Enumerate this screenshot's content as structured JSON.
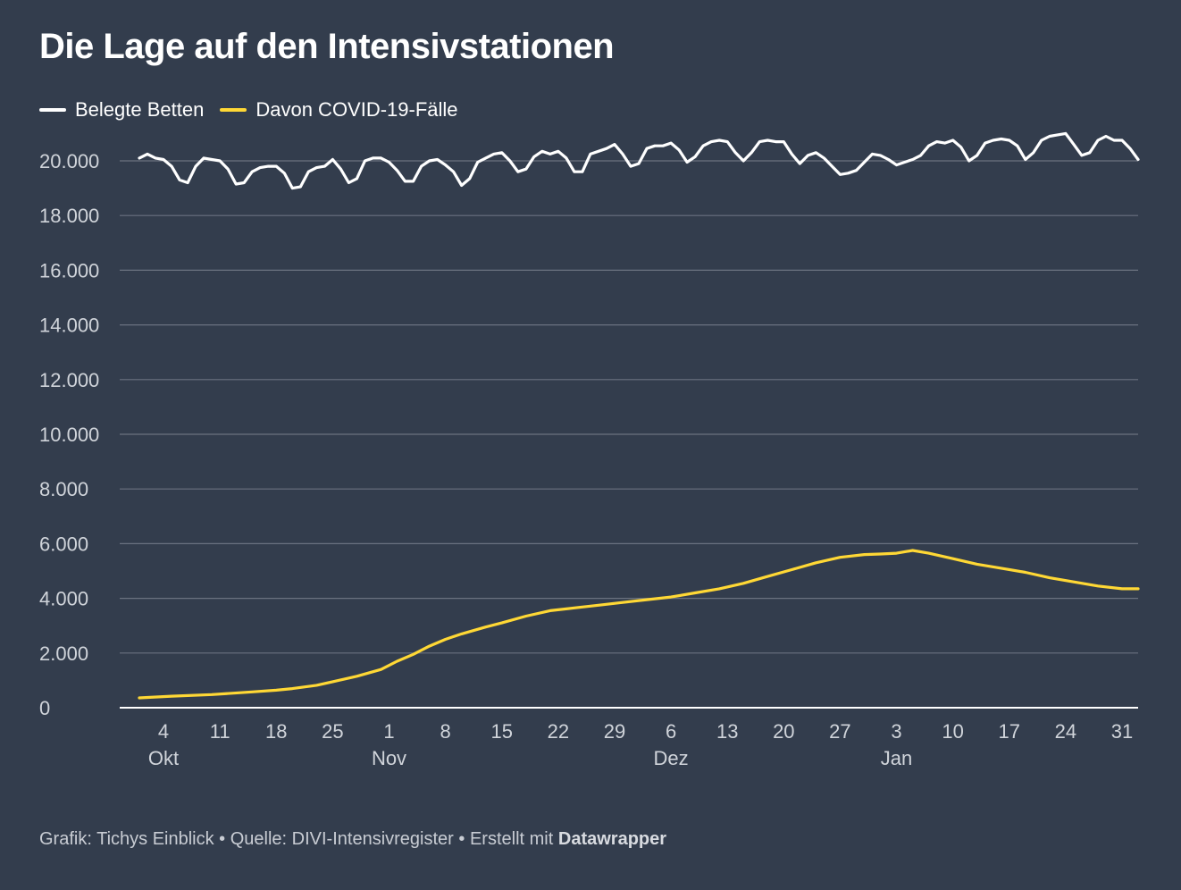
{
  "title": "Die Lage auf den Intensivstationen",
  "footer": {
    "credit": "Grafik: Tichys Einblick",
    "sep1": " • ",
    "source": "Quelle: DIVI-Intensivregister",
    "sep2": " • ",
    "made_with": "Erstellt mit ",
    "tool": "Datawrapper"
  },
  "colors": {
    "background": "#333d4d",
    "grid": "#6b7280",
    "text": "#d0d4da",
    "belegt": "#ffffff",
    "covid": "#ffd835"
  },
  "chart_data": {
    "type": "line",
    "title": "Die Lage auf den Intensivstationen",
    "xlabel": "",
    "ylabel": "",
    "x_start": "2020-10-01",
    "x_end": "2021-01-31",
    "ylim": [
      0,
      20000
    ],
    "yticks": [
      {
        "value": 0,
        "label": "0"
      },
      {
        "value": 2000,
        "label": "2.000"
      },
      {
        "value": 4000,
        "label": "4.000"
      },
      {
        "value": 6000,
        "label": "6.000"
      },
      {
        "value": 8000,
        "label": "8.000"
      },
      {
        "value": 10000,
        "label": "10.000"
      },
      {
        "value": 12000,
        "label": "12.000"
      },
      {
        "value": 14000,
        "label": "14.000"
      },
      {
        "value": 16000,
        "label": "16.000"
      },
      {
        "value": 18000,
        "label": "18.000"
      },
      {
        "value": 20000,
        "label": "20.000"
      }
    ],
    "xticks": [
      {
        "date": "2020-10-04",
        "label": "4",
        "month": "Okt"
      },
      {
        "date": "2020-10-11",
        "label": "11",
        "month": ""
      },
      {
        "date": "2020-10-18",
        "label": "18",
        "month": ""
      },
      {
        "date": "2020-10-25",
        "label": "25",
        "month": ""
      },
      {
        "date": "2020-11-01",
        "label": "1",
        "month": "Nov"
      },
      {
        "date": "2020-11-08",
        "label": "8",
        "month": ""
      },
      {
        "date": "2020-11-15",
        "label": "15",
        "month": ""
      },
      {
        "date": "2020-11-22",
        "label": "22",
        "month": ""
      },
      {
        "date": "2020-11-29",
        "label": "29",
        "month": ""
      },
      {
        "date": "2020-12-06",
        "label": "6",
        "month": "Dez"
      },
      {
        "date": "2020-12-13",
        "label": "13",
        "month": ""
      },
      {
        "date": "2020-12-20",
        "label": "20",
        "month": ""
      },
      {
        "date": "2020-12-27",
        "label": "27",
        "month": ""
      },
      {
        "date": "2021-01-03",
        "label": "3",
        "month": "Jan"
      },
      {
        "date": "2021-01-10",
        "label": "10",
        "month": ""
      },
      {
        "date": "2021-01-17",
        "label": "17",
        "month": ""
      },
      {
        "date": "2021-01-24",
        "label": "24",
        "month": ""
      },
      {
        "date": "2021-01-31",
        "label": "31",
        "month": ""
      }
    ],
    "grid": true,
    "legend_position": "top-left",
    "series": [
      {
        "name": "Belegte Betten",
        "color": "#ffffff",
        "points": [
          [
            "2020-10-01",
            20100
          ],
          [
            "2020-10-02",
            20250
          ],
          [
            "2020-10-03",
            20100
          ],
          [
            "2020-10-04",
            20050
          ],
          [
            "2020-10-05",
            19800
          ],
          [
            "2020-10-06",
            19300
          ],
          [
            "2020-10-07",
            19200
          ],
          [
            "2020-10-08",
            19800
          ],
          [
            "2020-10-09",
            20100
          ],
          [
            "2020-10-10",
            20050
          ],
          [
            "2020-10-11",
            20000
          ],
          [
            "2020-10-12",
            19700
          ],
          [
            "2020-10-13",
            19150
          ],
          [
            "2020-10-14",
            19200
          ],
          [
            "2020-10-15",
            19600
          ],
          [
            "2020-10-16",
            19750
          ],
          [
            "2020-10-17",
            19800
          ],
          [
            "2020-10-18",
            19800
          ],
          [
            "2020-10-19",
            19550
          ],
          [
            "2020-10-20",
            19000
          ],
          [
            "2020-10-21",
            19050
          ],
          [
            "2020-10-22",
            19600
          ],
          [
            "2020-10-23",
            19750
          ],
          [
            "2020-10-24",
            19800
          ],
          [
            "2020-10-25",
            20050
          ],
          [
            "2020-10-26",
            19700
          ],
          [
            "2020-10-27",
            19200
          ],
          [
            "2020-10-28",
            19350
          ],
          [
            "2020-10-29",
            20000
          ],
          [
            "2020-10-30",
            20100
          ],
          [
            "2020-10-31",
            20100
          ],
          [
            "2020-11-01",
            19950
          ],
          [
            "2020-11-02",
            19650
          ],
          [
            "2020-11-03",
            19250
          ],
          [
            "2020-11-04",
            19250
          ],
          [
            "2020-11-05",
            19800
          ],
          [
            "2020-11-06",
            20000
          ],
          [
            "2020-11-07",
            20050
          ],
          [
            "2020-11-08",
            19850
          ],
          [
            "2020-11-09",
            19600
          ],
          [
            "2020-11-10",
            19100
          ],
          [
            "2020-11-11",
            19350
          ],
          [
            "2020-11-12",
            19950
          ],
          [
            "2020-11-13",
            20100
          ],
          [
            "2020-11-14",
            20250
          ],
          [
            "2020-11-15",
            20300
          ],
          [
            "2020-11-16",
            20000
          ],
          [
            "2020-11-17",
            19600
          ],
          [
            "2020-11-18",
            19700
          ],
          [
            "2020-11-19",
            20150
          ],
          [
            "2020-11-20",
            20350
          ],
          [
            "2020-11-21",
            20250
          ],
          [
            "2020-11-22",
            20350
          ],
          [
            "2020-11-23",
            20100
          ],
          [
            "2020-11-24",
            19600
          ],
          [
            "2020-11-25",
            19600
          ],
          [
            "2020-11-26",
            20250
          ],
          [
            "2020-11-27",
            20350
          ],
          [
            "2020-11-28",
            20450
          ],
          [
            "2020-11-29",
            20600
          ],
          [
            "2020-11-30",
            20250
          ],
          [
            "2020-12-01",
            19800
          ],
          [
            "2020-12-02",
            19900
          ],
          [
            "2020-12-03",
            20450
          ],
          [
            "2020-12-04",
            20550
          ],
          [
            "2020-12-05",
            20550
          ],
          [
            "2020-12-06",
            20650
          ],
          [
            "2020-12-07",
            20400
          ],
          [
            "2020-12-08",
            19950
          ],
          [
            "2020-12-09",
            20150
          ],
          [
            "2020-12-10",
            20550
          ],
          [
            "2020-12-11",
            20700
          ],
          [
            "2020-12-12",
            20750
          ],
          [
            "2020-12-13",
            20700
          ],
          [
            "2020-12-14",
            20300
          ],
          [
            "2020-12-15",
            20000
          ],
          [
            "2020-12-16",
            20300
          ],
          [
            "2020-12-17",
            20700
          ],
          [
            "2020-12-18",
            20750
          ],
          [
            "2020-12-19",
            20700
          ],
          [
            "2020-12-20",
            20700
          ],
          [
            "2020-12-21",
            20250
          ],
          [
            "2020-12-22",
            19900
          ],
          [
            "2020-12-23",
            20200
          ],
          [
            "2020-12-24",
            20300
          ],
          [
            "2020-12-25",
            20100
          ],
          [
            "2020-12-26",
            19800
          ],
          [
            "2020-12-27",
            19500
          ],
          [
            "2020-12-28",
            19550
          ],
          [
            "2020-12-29",
            19650
          ],
          [
            "2020-12-30",
            19950
          ],
          [
            "2020-12-31",
            20250
          ],
          [
            "2021-01-01",
            20200
          ],
          [
            "2021-01-02",
            20050
          ],
          [
            "2021-01-03",
            19850
          ],
          [
            "2021-01-04",
            19950
          ],
          [
            "2021-01-05",
            20050
          ],
          [
            "2021-01-06",
            20200
          ],
          [
            "2021-01-07",
            20550
          ],
          [
            "2021-01-08",
            20700
          ],
          [
            "2021-01-09",
            20650
          ],
          [
            "2021-01-10",
            20750
          ],
          [
            "2021-01-11",
            20500
          ],
          [
            "2021-01-12",
            20000
          ],
          [
            "2021-01-13",
            20200
          ],
          [
            "2021-01-14",
            20650
          ],
          [
            "2021-01-15",
            20750
          ],
          [
            "2021-01-16",
            20800
          ],
          [
            "2021-01-17",
            20750
          ],
          [
            "2021-01-18",
            20550
          ],
          [
            "2021-01-19",
            20050
          ],
          [
            "2021-01-20",
            20300
          ],
          [
            "2021-01-21",
            20750
          ],
          [
            "2021-01-22",
            20900
          ],
          [
            "2021-01-23",
            20950
          ],
          [
            "2021-01-24",
            21000
          ],
          [
            "2021-01-25",
            20600
          ],
          [
            "2021-01-26",
            20200
          ],
          [
            "2021-01-27",
            20300
          ],
          [
            "2021-01-28",
            20750
          ],
          [
            "2021-01-29",
            20900
          ],
          [
            "2021-01-30",
            20750
          ],
          [
            "2021-01-31",
            20750
          ],
          [
            "2021-02-01",
            20450
          ],
          [
            "2021-02-02",
            20050
          ]
        ]
      },
      {
        "name": "Davon COVID-19-Fälle",
        "color": "#ffd835",
        "points": [
          [
            "2020-10-01",
            360
          ],
          [
            "2020-10-05",
            420
          ],
          [
            "2020-10-10",
            480
          ],
          [
            "2020-10-15",
            580
          ],
          [
            "2020-10-18",
            640
          ],
          [
            "2020-10-20",
            700
          ],
          [
            "2020-10-23",
            820
          ],
          [
            "2020-10-25",
            950
          ],
          [
            "2020-10-28",
            1150
          ],
          [
            "2020-10-31",
            1400
          ],
          [
            "2020-11-02",
            1700
          ],
          [
            "2020-11-04",
            1950
          ],
          [
            "2020-11-06",
            2250
          ],
          [
            "2020-11-08",
            2500
          ],
          [
            "2020-11-10",
            2700
          ],
          [
            "2020-11-13",
            2950
          ],
          [
            "2020-11-15",
            3100
          ],
          [
            "2020-11-18",
            3350
          ],
          [
            "2020-11-21",
            3550
          ],
          [
            "2020-11-24",
            3650
          ],
          [
            "2020-11-27",
            3750
          ],
          [
            "2020-11-30",
            3850
          ],
          [
            "2020-12-03",
            3950
          ],
          [
            "2020-12-06",
            4050
          ],
          [
            "2020-12-09",
            4200
          ],
          [
            "2020-12-12",
            4350
          ],
          [
            "2020-12-15",
            4550
          ],
          [
            "2020-12-18",
            4800
          ],
          [
            "2020-12-21",
            5050
          ],
          [
            "2020-12-24",
            5300
          ],
          [
            "2020-12-27",
            5500
          ],
          [
            "2020-12-30",
            5600
          ],
          [
            "2021-01-01",
            5620
          ],
          [
            "2021-01-03",
            5650
          ],
          [
            "2021-01-05",
            5750
          ],
          [
            "2021-01-07",
            5650
          ],
          [
            "2021-01-10",
            5450
          ],
          [
            "2021-01-13",
            5250
          ],
          [
            "2021-01-16",
            5100
          ],
          [
            "2021-01-19",
            4950
          ],
          [
            "2021-01-22",
            4750
          ],
          [
            "2021-01-25",
            4600
          ],
          [
            "2021-01-28",
            4450
          ],
          [
            "2021-01-31",
            4350
          ],
          [
            "2021-02-02",
            4350
          ]
        ]
      }
    ]
  }
}
